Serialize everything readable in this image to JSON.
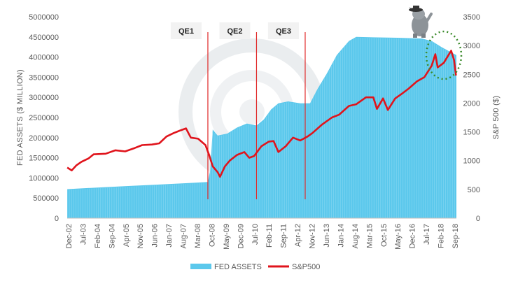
{
  "chart_data": {
    "type": "area",
    "x_ticks": [
      "Dec-02",
      "Jul-03",
      "Feb-04",
      "Sep-04",
      "Apr-05",
      "Nov-05",
      "Jun-06",
      "Jan-07",
      "Aug-07",
      "Mar-08",
      "Oct-08",
      "May-09",
      "Dec-09",
      "Jul-10",
      "Feb-11",
      "Sep-11",
      "Apr-12",
      "Nov-12",
      "Jun-13",
      "Jan-14",
      "Aug-14",
      "Mar-15",
      "Oct-15",
      "May-16",
      "Dec-16",
      "Jul-17",
      "Feb-18",
      "Sep-18"
    ],
    "x_range": [
      2002.917,
      2018.917
    ],
    "y_left": {
      "label": "FED ASSETS ($ MILLION)",
      "range": [
        0,
        5000000
      ],
      "ticks": [
        "0",
        "500000",
        "1000000",
        "1500000",
        "2000000",
        "2500000",
        "3000000",
        "3500000",
        "4000000",
        "4500000",
        "5000000"
      ]
    },
    "y_right": {
      "label": "S&P 500 ($)",
      "range": [
        0,
        3500
      ],
      "ticks": [
        "0",
        "500",
        "1000",
        "1500",
        "2000",
        "2500",
        "3000",
        "3500"
      ]
    },
    "series": [
      {
        "name": "FED ASSETS",
        "type": "area",
        "axis": "left",
        "color": "#5bc8ec",
        "points": [
          [
            2002.92,
            720000
          ],
          [
            2003.5,
            740000
          ],
          [
            2004.5,
            770000
          ],
          [
            2005.5,
            800000
          ],
          [
            2006.5,
            830000
          ],
          [
            2007.5,
            860000
          ],
          [
            2008.2,
            880000
          ],
          [
            2008.7,
            900000
          ],
          [
            2008.8,
            1200000
          ],
          [
            2008.9,
            2200000
          ],
          [
            2009.1,
            2050000
          ],
          [
            2009.5,
            2100000
          ],
          [
            2009.9,
            2250000
          ],
          [
            2010.3,
            2350000
          ],
          [
            2010.7,
            2300000
          ],
          [
            2011.0,
            2450000
          ],
          [
            2011.3,
            2700000
          ],
          [
            2011.6,
            2850000
          ],
          [
            2012.0,
            2900000
          ],
          [
            2012.5,
            2850000
          ],
          [
            2012.9,
            2850000
          ],
          [
            2013.2,
            3200000
          ],
          [
            2013.6,
            3600000
          ],
          [
            2014.0,
            4050000
          ],
          [
            2014.5,
            4400000
          ],
          [
            2014.8,
            4500000
          ],
          [
            2015.5,
            4490000
          ],
          [
            2016.5,
            4480000
          ],
          [
            2017.5,
            4460000
          ],
          [
            2017.9,
            4400000
          ],
          [
            2018.3,
            4250000
          ],
          [
            2018.6,
            4150000
          ],
          [
            2018.917,
            4050000
          ]
        ]
      },
      {
        "name": "S&P500",
        "type": "line",
        "axis": "right",
        "color": "#e0141c",
        "points": [
          [
            2002.92,
            880
          ],
          [
            2003.1,
            830
          ],
          [
            2003.3,
            920
          ],
          [
            2003.5,
            980
          ],
          [
            2003.8,
            1040
          ],
          [
            2004.0,
            1110
          ],
          [
            2004.5,
            1120
          ],
          [
            2004.9,
            1180
          ],
          [
            2005.3,
            1160
          ],
          [
            2005.7,
            1220
          ],
          [
            2006.0,
            1270
          ],
          [
            2006.4,
            1280
          ],
          [
            2006.7,
            1300
          ],
          [
            2007.0,
            1420
          ],
          [
            2007.3,
            1480
          ],
          [
            2007.6,
            1530
          ],
          [
            2007.8,
            1560
          ],
          [
            2008.0,
            1400
          ],
          [
            2008.3,
            1380
          ],
          [
            2008.6,
            1270
          ],
          [
            2008.75,
            1100
          ],
          [
            2008.9,
            900
          ],
          [
            2009.1,
            800
          ],
          [
            2009.2,
            720
          ],
          [
            2009.4,
            900
          ],
          [
            2009.6,
            1000
          ],
          [
            2009.9,
            1100
          ],
          [
            2010.2,
            1150
          ],
          [
            2010.4,
            1050
          ],
          [
            2010.6,
            1080
          ],
          [
            2010.9,
            1250
          ],
          [
            2011.2,
            1330
          ],
          [
            2011.4,
            1340
          ],
          [
            2011.6,
            1150
          ],
          [
            2011.9,
            1250
          ],
          [
            2012.2,
            1400
          ],
          [
            2012.5,
            1350
          ],
          [
            2012.8,
            1420
          ],
          [
            2013.0,
            1480
          ],
          [
            2013.4,
            1630
          ],
          [
            2013.8,
            1750
          ],
          [
            2014.1,
            1800
          ],
          [
            2014.5,
            1950
          ],
          [
            2014.8,
            1980
          ],
          [
            2015.2,
            2100
          ],
          [
            2015.5,
            2100
          ],
          [
            2015.65,
            1900
          ],
          [
            2015.9,
            2080
          ],
          [
            2016.1,
            1880
          ],
          [
            2016.4,
            2080
          ],
          [
            2016.7,
            2170
          ],
          [
            2016.95,
            2250
          ],
          [
            2017.3,
            2380
          ],
          [
            2017.6,
            2450
          ],
          [
            2017.9,
            2650
          ],
          [
            2018.05,
            2850
          ],
          [
            2018.15,
            2620
          ],
          [
            2018.4,
            2700
          ],
          [
            2018.7,
            2910
          ],
          [
            2018.82,
            2750
          ],
          [
            2018.9,
            2480
          ]
        ]
      }
    ],
    "annotations": [
      {
        "label": "QE1",
        "start": 2008.7
      },
      {
        "label": "QE2",
        "start": 2010.7
      },
      {
        "label": "QE3",
        "start": 2012.7
      }
    ],
    "legend": "bottom",
    "grid": false
  }
}
